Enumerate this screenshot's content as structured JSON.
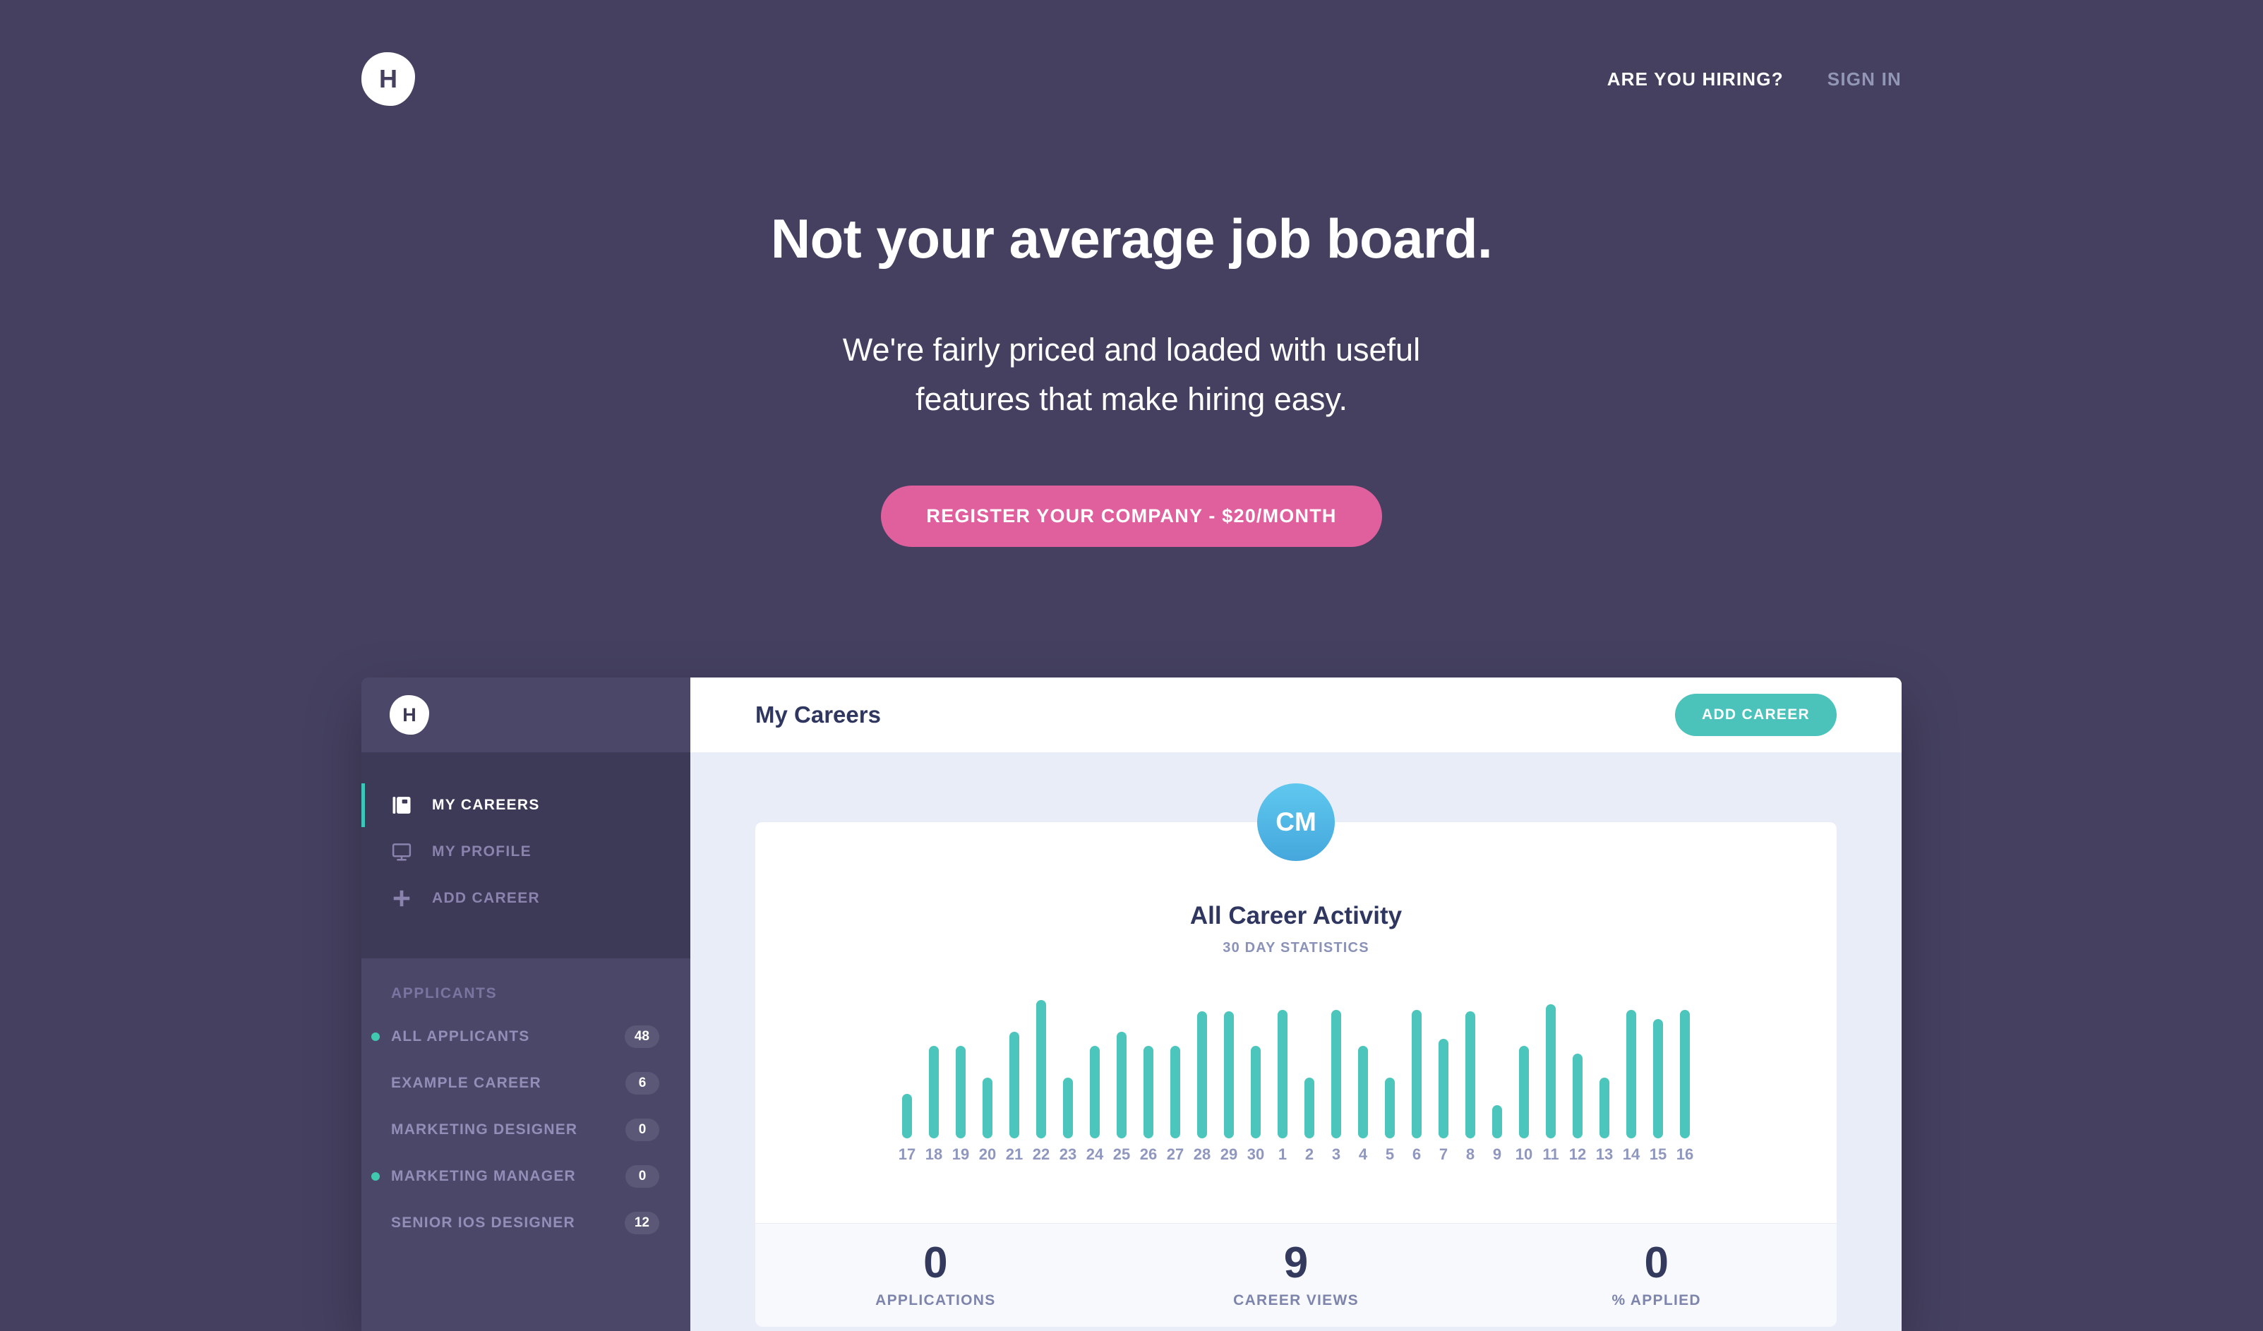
{
  "colors": {
    "page_bg": "#454060",
    "sidebar_bg": "#4B4769",
    "sidebar_nav_bg": "#3D3A57",
    "accent_teal": "#4CC3BA",
    "accent_pink": "#E0609E",
    "avatar_blue_top": "#5FC8EF",
    "avatar_blue_bottom": "#45A7DC",
    "navy_text": "#2F3760",
    "content_bg": "#E9EDF8",
    "card_footer_bg": "#F7F9FD"
  },
  "topbar": {
    "logo_letter": "H",
    "hiring_link": "ARE YOU HIRING?",
    "signin_link": "SIGN IN"
  },
  "hero": {
    "title": "Not your average job board.",
    "subtitle_line1": "We're fairly priced and loaded with useful",
    "subtitle_line2": "features that make hiring easy.",
    "cta": "REGISTER YOUR COMPANY - $20/MONTH"
  },
  "app": {
    "sidebar": {
      "logo_letter": "H",
      "nav": [
        {
          "label": "MY CAREERS",
          "icon": "book-icon",
          "active": true
        },
        {
          "label": "MY PROFILE",
          "icon": "monitor-icon",
          "active": false
        },
        {
          "label": "ADD CAREER",
          "icon": "plus-icon",
          "active": false
        }
      ],
      "applicants": {
        "header": "APPLICANTS",
        "items": [
          {
            "label": "ALL APPLICANTS",
            "count": "48",
            "dot": true
          },
          {
            "label": "EXAMPLE CAREER",
            "count": "6",
            "dot": false
          },
          {
            "label": "MARKETING DESIGNER",
            "count": "0",
            "dot": false
          },
          {
            "label": "MARKETING MANAGER",
            "count": "0",
            "dot": true
          },
          {
            "label": "SENIOR IOS DESIGNER",
            "count": "12",
            "dot": false
          }
        ]
      }
    },
    "header": {
      "title": "My Careers",
      "add_button": "ADD CAREER"
    },
    "avatar": "CM",
    "chart_card": {
      "title": "All Career Activity",
      "subtitle": "30 DAY STATISTICS"
    },
    "stats": [
      {
        "value": "0",
        "label": "APPLICATIONS"
      },
      {
        "value": "9",
        "label": "CAREER VIEWS"
      },
      {
        "value": "0",
        "label": "% APPLIED"
      }
    ]
  },
  "chart_data": {
    "type": "bar",
    "title": "All Career Activity",
    "subtitle": "30 DAY STATISTICS",
    "xlabel": "day of month",
    "ylabel": "activity (unlabeled axis; values are % of tallest bar, day 22)",
    "ylim": [
      0,
      100
    ],
    "grid": false,
    "legend": "none",
    "bar_color": "#4CC5BC",
    "categories": [
      "17",
      "18",
      "19",
      "20",
      "21",
      "22",
      "23",
      "24",
      "25",
      "26",
      "27",
      "28",
      "29",
      "30",
      "1",
      "2",
      "3",
      "4",
      "5",
      "6",
      "7",
      "8",
      "9",
      "10",
      "11",
      "12",
      "13",
      "14",
      "15",
      "16"
    ],
    "values": [
      32,
      67,
      67,
      44,
      77,
      100,
      44,
      67,
      77,
      67,
      67,
      92,
      92,
      67,
      93,
      44,
      93,
      67,
      44,
      93,
      72,
      92,
      24,
      67,
      97,
      61,
      44,
      93,
      86,
      93
    ]
  }
}
